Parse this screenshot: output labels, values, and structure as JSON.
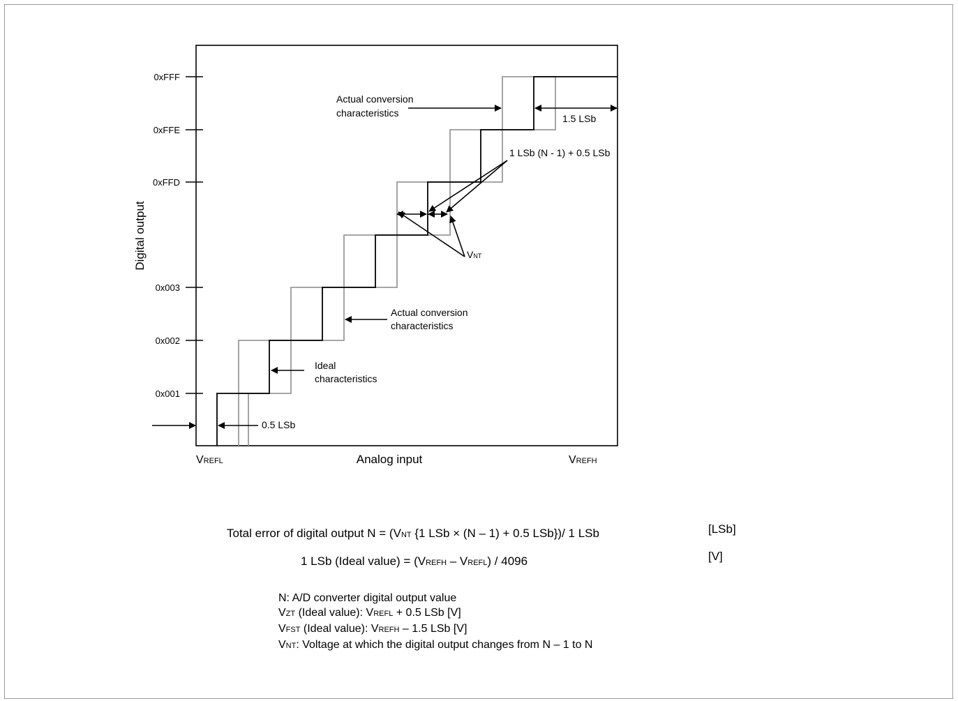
{
  "diagram": {
    "y_axis_title": "Digital output",
    "x_axis_title": "Analog input",
    "x_left": {
      "main": "V",
      "sub": "REFL"
    },
    "x_right": {
      "main": "V",
      "sub": "REFH"
    },
    "y_ticks": [
      "0xFFF",
      "0xFFE",
      "0xFFD",
      "0x003",
      "0x002",
      "0x001"
    ],
    "annotations": {
      "actual_top_1": "Actual conversion",
      "actual_top_2": "characteristics",
      "lsb_15": "1.5 LSb",
      "lsb_formula": "1 LSb (N - 1) + 0.5 LSb",
      "vnt_main": "V",
      "vnt_sub": "NT",
      "actual_mid_1": "Actual conversion",
      "actual_mid_2": "characteristics",
      "ideal_1": "Ideal",
      "ideal_2": "characteristics",
      "lsb_05": "0.5 LSb"
    }
  },
  "formulas": {
    "total_error": {
      "prefix": "Total error of digital output N = (V",
      "sub": "NT",
      "suffix": " {1 LSb × (N – 1) + 0.5 LSb})/ 1 LSb",
      "unit": "[LSb]"
    },
    "one_lsb": {
      "prefix": "1 LSb (Ideal value) = (V",
      "sub1": "REFH",
      "mid": " – V",
      "sub2": "REFL",
      "suffix": ") / 4096",
      "unit": "[V]"
    }
  },
  "definitions": {
    "n_def": "N: A/D converter digital output value",
    "vzt": {
      "main": "V",
      "sub": "ZT",
      "text": " (Ideal value): V",
      "sub2": "REFL",
      "tail": " + 0.5 LSb [V]"
    },
    "vfst": {
      "main": "V",
      "sub": "FST",
      "text": " (Ideal value): V",
      "sub2": "REFH",
      "tail": " – 1.5 LSb [V]"
    },
    "vnt": {
      "main": "V",
      "sub": "NT",
      "text": ": Voltage at which the digital output changes from N – 1 to N"
    }
  },
  "colors": {
    "ideal": "#000000",
    "actual": "#9a9a9a"
  }
}
